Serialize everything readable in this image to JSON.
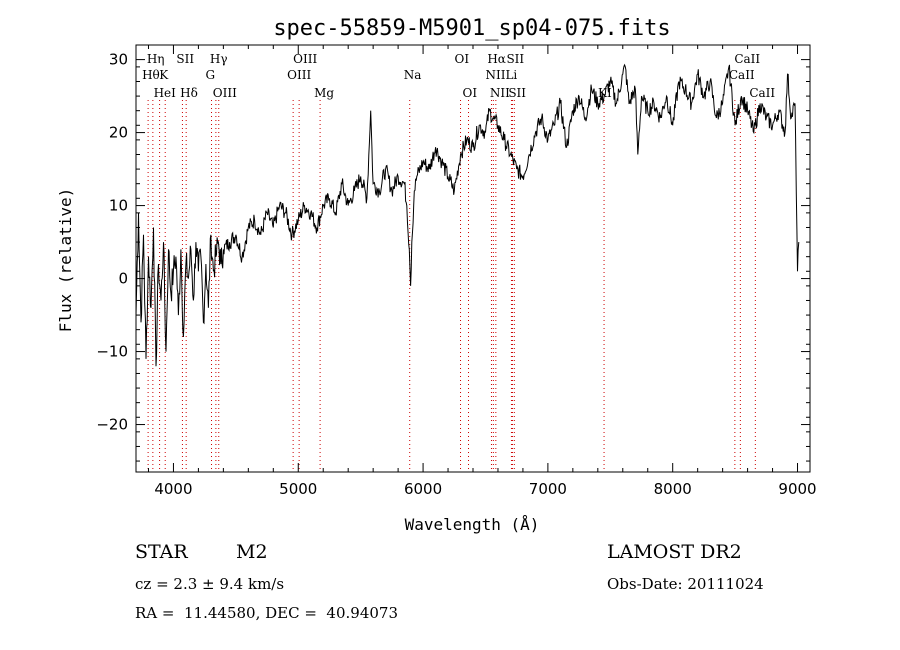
{
  "chart_data": {
    "type": "line",
    "title": "spec-55859-M5901_sp04-075.fits",
    "xlabel": "Wavelength (Å)",
    "ylabel": "Flux (relative)",
    "xlim": [
      3700,
      9100
    ],
    "ylim": [
      -26.5,
      32
    ],
    "x_ticks": [
      4000,
      5000,
      6000,
      7000,
      8000,
      9000
    ],
    "y_ticks": [
      -20,
      -10,
      0,
      10,
      20,
      30
    ],
    "grid": false,
    "line_color": "#000000",
    "marker_color": "#cc0000",
    "series": [
      {
        "x": [
          3700,
          3720,
          3740,
          3760,
          3780,
          3800,
          3820,
          3840,
          3860,
          3880,
          3900,
          3920,
          3940,
          3960,
          3980,
          4000,
          4020,
          4040,
          4060,
          4080,
          4100,
          4120,
          4140,
          4160,
          4180,
          4200,
          4220,
          4240,
          4260,
          4280,
          4300,
          4320,
          4340,
          4360,
          4380,
          4400,
          4450,
          4500,
          4550,
          4600,
          4650,
          4700,
          4750,
          4800,
          4850,
          4900,
          4950,
          5000,
          5050,
          5100,
          5150,
          5200,
          5250,
          5300,
          5350,
          5400,
          5450,
          5500,
          5550,
          5580,
          5600,
          5650,
          5700,
          5750,
          5800,
          5850,
          5870,
          5890,
          5900,
          5910,
          5930,
          5950,
          6000,
          6050,
          6100,
          6150,
          6200,
          6250,
          6300,
          6350,
          6400,
          6450,
          6500,
          6530,
          6560,
          6600,
          6650,
          6700,
          6750,
          6800,
          6850,
          6900,
          6950,
          7000,
          7050,
          7100,
          7150,
          7200,
          7250,
          7300,
          7350,
          7400,
          7450,
          7500,
          7550,
          7600,
          7620,
          7650,
          7700,
          7720,
          7750,
          7800,
          7850,
          7900,
          7950,
          8000,
          8050,
          8100,
          8150,
          8200,
          8250,
          8300,
          8350,
          8400,
          8450,
          8500,
          8550,
          8600,
          8650,
          8700,
          8750,
          8800,
          8850,
          8900,
          8920,
          8950,
          8980,
          9000,
          9010
        ],
        "y": [
          -5,
          9,
          -6,
          6,
          -11,
          3,
          -4,
          7,
          -12,
          2,
          -3,
          5,
          -10,
          4,
          -2,
          1,
          3,
          -5,
          4,
          -8,
          2,
          0,
          4,
          -3,
          5,
          1,
          3,
          -6,
          2,
          -4,
          6,
          1,
          3,
          5,
          2,
          4,
          5,
          6,
          3,
          7,
          8,
          6,
          9,
          7,
          10,
          9,
          6,
          8,
          10,
          9,
          7,
          10,
          11,
          9,
          13,
          10,
          12,
          14,
          11,
          23,
          13,
          12,
          15,
          12,
          14,
          13,
          10,
          4,
          -1,
          5,
          12,
          14,
          16,
          15,
          18,
          16,
          14,
          12,
          17,
          19,
          18,
          21,
          20,
          23,
          22,
          21,
          19,
          17,
          15,
          14,
          17,
          20,
          22,
          19,
          21,
          24,
          18,
          23,
          25,
          22,
          26,
          24,
          25,
          27,
          24,
          28,
          29,
          24,
          26,
          17,
          25,
          23,
          24,
          22,
          25,
          21,
          27,
          26,
          24,
          28,
          25,
          27,
          22,
          24,
          29,
          21,
          25,
          23,
          20,
          24,
          22,
          21,
          23,
          20,
          28,
          22,
          24,
          1,
          5
        ]
      }
    ],
    "line_markers": [
      {
        "label": "Hη",
        "x": 3835,
        "row": 0
      },
      {
        "label": "Hθ",
        "x": 3797,
        "row": 1
      },
      {
        "label": "HeI",
        "x": 3889,
        "row": 2
      },
      {
        "label": "K",
        "x": 3934,
        "row": 1
      },
      {
        "label": "SII",
        "x": 4072,
        "row": 0
      },
      {
        "label": "Hδ",
        "x": 4102,
        "row": 2
      },
      {
        "label": "Hγ",
        "x": 4340,
        "row": 0
      },
      {
        "label": "G",
        "x": 4305,
        "row": 1
      },
      {
        "label": "OIII",
        "x": 4363,
        "row": 2
      },
      {
        "label": "OIII",
        "x": 5007,
        "row": 0
      },
      {
        "label": "OIII",
        "x": 4959,
        "row": 1
      },
      {
        "label": "Mg",
        "x": 5175,
        "row": 2
      },
      {
        "label": "Na",
        "x": 5893,
        "row": 1
      },
      {
        "label": "OI",
        "x": 6300,
        "row": 0
      },
      {
        "label": "OI",
        "x": 6364,
        "row": 2
      },
      {
        "label": "Hα",
        "x": 6563,
        "row": 0
      },
      {
        "label": "SII",
        "x": 6716,
        "row": 0
      },
      {
        "label": "NII",
        "x": 6548,
        "row": 1
      },
      {
        "label": "Li",
        "x": 6708,
        "row": 1
      },
      {
        "label": "NII",
        "x": 6583,
        "row": 2
      },
      {
        "label": "SII",
        "x": 6731,
        "row": 2
      },
      {
        "label": "KI",
        "x": 7450,
        "row": 2
      },
      {
        "label": "CaII",
        "x": 8542,
        "row": 0
      },
      {
        "label": "CaII",
        "x": 8498,
        "row": 1
      },
      {
        "label": "CaII",
        "x": 8662,
        "row": 2
      }
    ]
  },
  "info": {
    "class_label": "STAR",
    "subclass_label": "M2",
    "survey_label": "LAMOST DR2",
    "cz_line": "cz = 2.3 ± 9.4 km/s",
    "obs_date_line": "Obs-Date: 20111024",
    "coords_line": "RA =  11.44580, DEC =  40.94073"
  }
}
